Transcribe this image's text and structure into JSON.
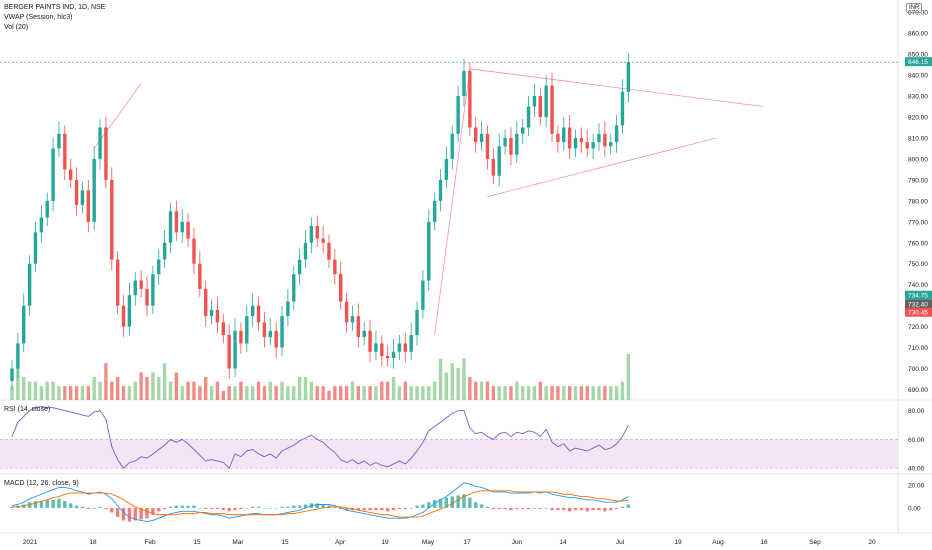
{
  "header": {
    "symbol": "BERGER PAINTS IND, 1D, NSE",
    "vwap": "VWAP (Session, hlc3)",
    "vol": "Vol (20)",
    "currency": "INR",
    "rsi": "RSI (14, close)",
    "macd": "MACD (12, 26, close, 9)"
  },
  "colors": {
    "up": "#26a69a",
    "down": "#ef5350",
    "vol_up": "#a5d6a7",
    "vol_down": "#f28b86",
    "rsi": "#7e57c2",
    "rsi_band": "#f3e5f5",
    "macd": "#2196f3",
    "signal": "#ff6d00",
    "trend": "#f48fb1"
  },
  "chart_data": [
    {
      "type": "candlestick",
      "title": "BERGER PAINTS IND, 1D, NSE",
      "y_ticks": [
        690,
        700,
        710,
        720,
        730,
        740,
        750,
        760,
        770,
        780,
        790,
        800,
        810,
        820,
        830,
        840,
        850,
        860,
        870
      ],
      "ylim": [
        685,
        872
      ],
      "price_labels": [
        "846.15",
        "734.75",
        "732.40",
        "730.45"
      ],
      "x_labels": [
        "2021",
        "18",
        "Feb",
        "15",
        "Mar",
        "15",
        "Apr",
        "19",
        "May",
        "17",
        "Jun",
        "14",
        "Jul",
        "19",
        "Aug",
        "16",
        "Sep",
        "20"
      ],
      "closes": [
        700,
        712,
        730,
        750,
        765,
        772,
        780,
        805,
        812,
        795,
        790,
        778,
        785,
        770,
        800,
        815,
        790,
        752,
        730,
        720,
        735,
        742,
        738,
        730,
        745,
        752,
        760,
        775,
        765,
        770,
        762,
        750,
        738,
        725,
        728,
        722,
        716,
        700,
        718,
        712,
        725,
        730,
        722,
        715,
        718,
        710,
        725,
        732,
        745,
        752,
        760,
        768,
        762,
        760,
        752,
        745,
        732,
        722,
        725,
        715,
        718,
        708,
        712,
        706,
        705,
        708,
        712,
        708,
        716,
        728,
        742,
        770,
        780,
        790,
        800,
        812,
        830,
        842,
        815,
        808,
        812,
        800,
        792,
        806,
        810,
        802,
        812,
        815,
        825,
        830,
        820,
        835,
        812,
        808,
        815,
        805,
        810,
        808,
        805,
        808,
        812,
        806,
        808,
        816,
        832,
        846.15
      ],
      "volume": [
        3,
        7,
        5,
        4,
        4,
        3,
        4,
        4,
        3,
        3,
        3,
        3,
        3,
        3,
        5,
        4,
        8,
        4,
        5,
        3,
        3,
        4,
        6,
        5,
        6,
        5,
        8,
        4,
        6,
        3,
        4,
        4,
        3,
        5,
        3,
        4,
        2,
        3,
        3,
        4,
        3,
        3,
        4,
        3,
        4,
        3,
        4,
        3,
        3,
        5,
        5,
        4,
        3,
        3,
        2,
        3,
        3,
        3,
        4,
        3,
        3,
        3,
        3,
        4,
        4,
        5,
        3,
        4,
        3,
        3,
        3,
        3,
        4,
        9,
        6,
        8,
        7,
        9,
        5,
        4,
        4,
        4,
        3,
        3,
        3,
        3,
        4,
        3,
        3,
        3,
        4,
        3,
        3,
        3,
        3,
        3,
        3,
        3,
        3,
        3,
        3,
        3,
        3,
        3,
        4,
        10
      ],
      "trendlines": [
        {
          "from": [
            14,
            805
          ],
          "to": [
            22,
            836
          ]
        },
        {
          "from": [
            72,
            716
          ],
          "to": [
            78,
            843
          ]
        },
        {
          "from": [
            78,
            843
          ],
          "to": [
            128,
            825
          ]
        },
        {
          "from": [
            81,
            782
          ],
          "to": [
            120,
            810
          ]
        }
      ]
    },
    {
      "type": "line",
      "title": "RSI (14, close)",
      "y_ticks": [
        40,
        60,
        80
      ],
      "band": [
        40,
        60
      ],
      "ylim": [
        36,
        86
      ],
      "values": [
        62,
        72,
        76,
        80,
        82,
        83,
        82,
        82,
        81,
        80,
        79,
        78,
        77,
        76,
        79,
        80,
        74,
        55,
        46,
        40,
        44,
        45,
        48,
        47,
        50,
        53,
        56,
        60,
        58,
        60,
        57,
        53,
        49,
        45,
        46,
        45,
        44,
        40,
        50,
        48,
        52,
        53,
        50,
        48,
        50,
        47,
        52,
        54,
        56,
        59,
        61,
        63,
        60,
        58,
        54,
        51,
        46,
        44,
        46,
        43,
        45,
        42,
        44,
        42,
        41,
        43,
        45,
        43,
        47,
        52,
        58,
        66,
        69,
        72,
        75,
        78,
        80,
        80,
        68,
        64,
        65,
        62,
        60,
        64,
        65,
        62,
        65,
        64,
        66,
        65,
        62,
        67,
        58,
        55,
        57,
        52,
        54,
        53,
        52,
        54,
        56,
        53,
        54,
        57,
        62,
        70
      ]
    },
    {
      "type": "line",
      "title": "MACD (12, 26, close, 9)",
      "y_ticks": [
        "20.00",
        "0.00"
      ],
      "ylim": [
        -22,
        28
      ],
      "macd": [
        2,
        3,
        5,
        8,
        10,
        12,
        14,
        16,
        18,
        18,
        17,
        15,
        14,
        12,
        13,
        14,
        12,
        8,
        2,
        -4,
        -8,
        -10,
        -11,
        -12,
        -11,
        -9,
        -7,
        -5,
        -4,
        -3,
        -3,
        -3,
        -4,
        -5,
        -6,
        -6,
        -7,
        -9,
        -8,
        -7,
        -6,
        -5,
        -5,
        -6,
        -6,
        -6,
        -5,
        -4,
        -3,
        -2,
        0,
        2,
        3,
        3,
        3,
        2,
        0,
        -2,
        -3,
        -4,
        -5,
        -6,
        -7,
        -8,
        -9,
        -9,
        -9,
        -9,
        -8,
        -6,
        -4,
        0,
        4,
        7,
        10,
        14,
        18,
        22,
        21,
        19,
        18,
        16,
        14,
        14,
        14,
        13,
        13,
        13,
        13,
        14,
        13,
        14,
        12,
        11,
        10,
        9,
        9,
        8,
        7,
        7,
        6,
        5,
        5,
        5,
        7,
        10
      ],
      "signal": [
        1,
        1,
        2,
        3,
        4,
        6,
        7,
        9,
        10,
        12,
        13,
        13,
        13,
        13,
        13,
        13,
        13,
        12,
        10,
        7,
        4,
        1,
        -1,
        -3,
        -5,
        -6,
        -6,
        -6,
        -6,
        -5,
        -5,
        -5,
        -4,
        -4,
        -5,
        -5,
        -5,
        -6,
        -6,
        -6,
        -6,
        -6,
        -6,
        -6,
        -6,
        -6,
        -6,
        -5,
        -5,
        -4,
        -3,
        -2,
        -1,
        0,
        1,
        1,
        1,
        0,
        -1,
        -2,
        -3,
        -4,
        -5,
        -6,
        -6,
        -7,
        -8,
        -8,
        -8,
        -8,
        -7,
        -5,
        -3,
        -1,
        1,
        4,
        7,
        10,
        12,
        14,
        15,
        15,
        15,
        15,
        15,
        15,
        14,
        14,
        14,
        14,
        14,
        14,
        14,
        13,
        12,
        12,
        11,
        10,
        10,
        9,
        8,
        8,
        7,
        6,
        6,
        7
      ]
    }
  ]
}
